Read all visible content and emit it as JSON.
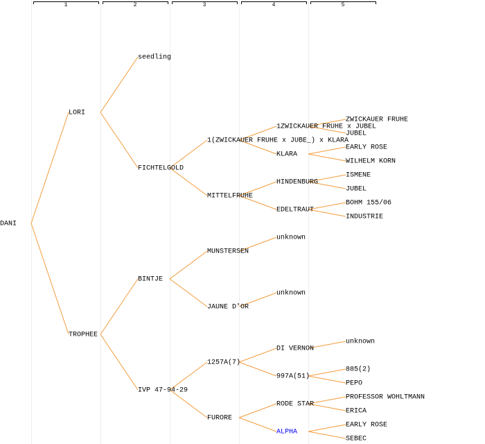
{
  "columns": [
    "1",
    "2",
    "3",
    "4",
    "5"
  ],
  "tree": {
    "label": "DANI",
    "parents": [
      {
        "label": "LORI",
        "parents": [
          {
            "label": "seedling"
          },
          {
            "label": "FICHTELGOLD",
            "parents": [
              {
                "label": "1(ZWICKAUER FRUHE x JUBE_) x KLARA",
                "parents": [
                  {
                    "label": "1ZWICKAUER FRUHE x JUBEL",
                    "parents": [
                      {
                        "label": "ZWICKAUER FRUHE"
                      },
                      {
                        "label": "JUBEL"
                      }
                    ]
                  },
                  {
                    "label": "KLARA",
                    "parents": [
                      {
                        "label": "EARLY ROSE"
                      },
                      {
                        "label": "WILHELM KORN"
                      }
                    ]
                  }
                ]
              },
              {
                "label": "MITTELFRUHE",
                "parents": [
                  {
                    "label": "HINDENBURG",
                    "parents": [
                      {
                        "label": "ISMENE"
                      },
                      {
                        "label": "JUBEL"
                      }
                    ]
                  },
                  {
                    "label": "EDELTRAUT",
                    "parents": [
                      {
                        "label": "BOHM 155/06"
                      },
                      {
                        "label": "INDUSTRIE"
                      }
                    ]
                  }
                ]
              }
            ]
          }
        ]
      },
      {
        "label": "TROPHEE",
        "parents": [
          {
            "label": "BINTJE",
            "parents": [
              {
                "label": "MUNSTERSEN",
                "parents": [
                  {
                    "label": "unknown"
                  }
                ]
              },
              {
                "label": "JAUNE D'OR",
                "parents": [
                  {
                    "label": "unknown"
                  }
                ]
              }
            ]
          },
          {
            "label": "IVP 47-94-29",
            "parents": [
              {
                "label": "1257A(7)",
                "parents": [
                  {
                    "label": "DI VERNON",
                    "parents": [
                      {
                        "label": "unknown"
                      }
                    ]
                  },
                  {
                    "label": "997A(51)",
                    "parents": [
                      {
                        "label": "885(2)"
                      },
                      {
                        "label": "PEPO"
                      }
                    ]
                  }
                ]
              },
              {
                "label": "FURORE",
                "parents": [
                  {
                    "label": "RODE STAR",
                    "parents": [
                      {
                        "label": "PROFESSOR WOHLTMANN"
                      },
                      {
                        "label": "ERICA"
                      }
                    ]
                  },
                  {
                    "label": "ALPHA",
                    "color": "#0000ff",
                    "parents": [
                      {
                        "label": "EARLY ROSE"
                      },
                      {
                        "label": "SEBEC"
                      }
                    ]
                  }
                ]
              }
            ]
          }
        ]
      }
    ]
  }
}
